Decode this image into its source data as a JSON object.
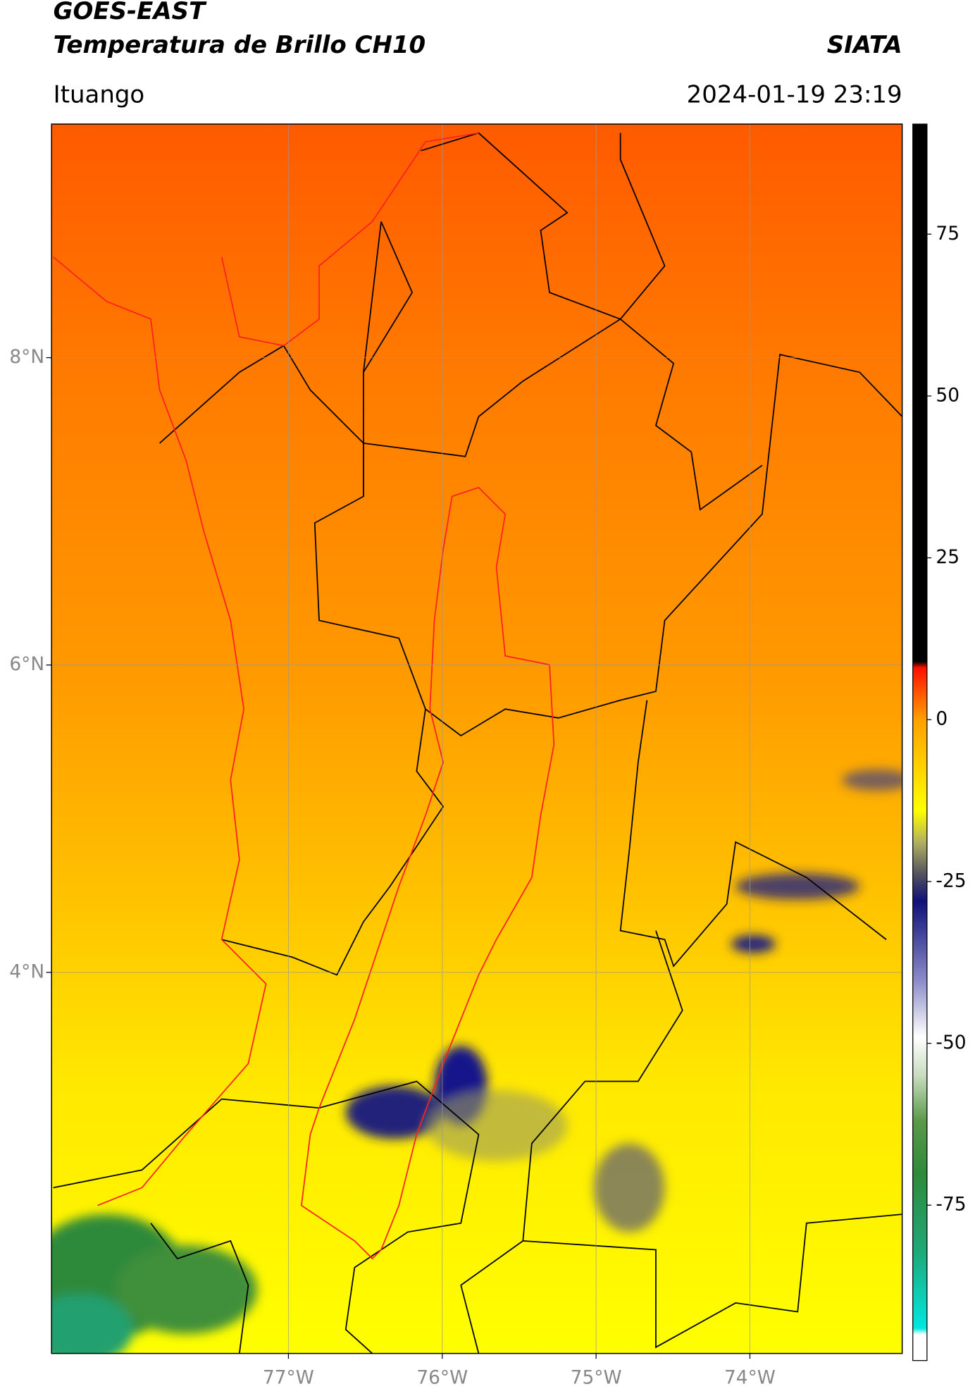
{
  "chart_data": {
    "type": "map",
    "title": "GOES-EAST",
    "subtitle": "Temperatura de Brillo CH10",
    "source": "SIATA",
    "location": "Ituango",
    "datetime": "2024-01-19 23:19",
    "xlim": [
      -78.54,
      -73.01
    ],
    "ylim": [
      1.52,
      9.52
    ],
    "xticks": [
      {
        "value": -77,
        "label": "77°W"
      },
      {
        "value": -76,
        "label": "76°W"
      },
      {
        "value": -75,
        "label": "75°W"
      },
      {
        "value": -74,
        "label": "74°W"
      }
    ],
    "yticks": [
      {
        "value": 8,
        "label": "8°N"
      },
      {
        "value": 6,
        "label": "6°N"
      },
      {
        "value": 4,
        "label": "4°N"
      }
    ],
    "grid": true,
    "colorbar": {
      "lim": [
        -99,
        92
      ],
      "ticks": [
        75,
        50,
        25,
        0,
        -25,
        -50,
        -75
      ],
      "stops": [
        {
          "value": -99,
          "color": "#ffffff"
        },
        {
          "value": -95,
          "color": "#ffffff"
        },
        {
          "value": -94,
          "color": "#00e8e0"
        },
        {
          "value": -82,
          "color": "#20a878"
        },
        {
          "value": -70,
          "color": "#2e8a3a"
        },
        {
          "value": -62,
          "color": "#5a9a48"
        },
        {
          "value": -55,
          "color": "#c8dcc0"
        },
        {
          "value": -49,
          "color": "#ffffff"
        },
        {
          "value": -40,
          "color": "#8888c8"
        },
        {
          "value": -28,
          "color": "#10107a"
        },
        {
          "value": -24,
          "color": "#505060"
        },
        {
          "value": -19,
          "color": "#b0b060"
        },
        {
          "value": -14,
          "color": "#ffff00"
        },
        {
          "value": 0,
          "color": "#ffa000"
        },
        {
          "value": 8,
          "color": "#ff1000"
        },
        {
          "value": 9,
          "color": "#000000"
        },
        {
          "value": 92,
          "color": "#000000"
        }
      ]
    }
  }
}
